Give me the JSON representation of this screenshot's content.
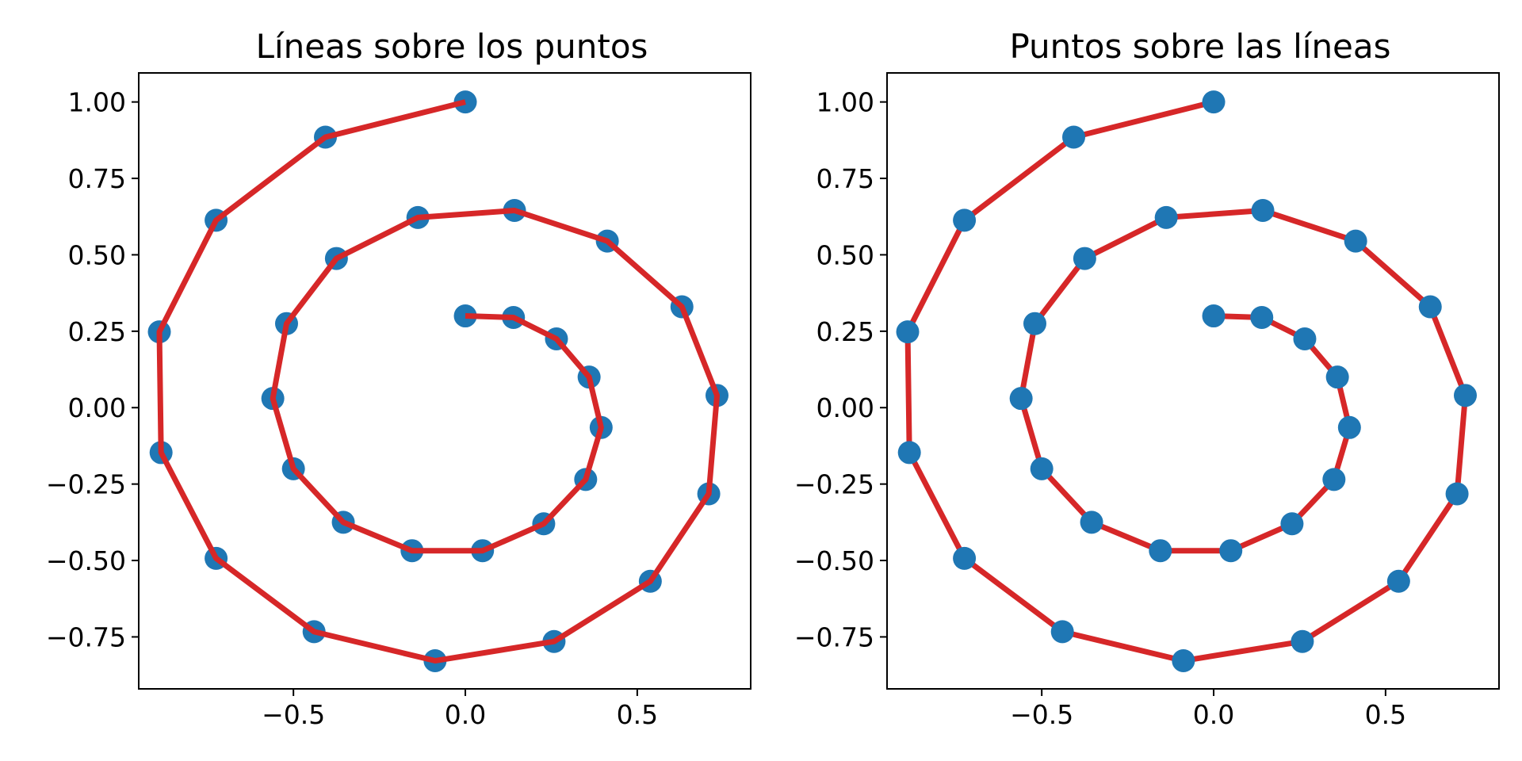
{
  "chart_data": [
    {
      "type": "line",
      "title": "Líneas sobre los puntos",
      "xlabel": "",
      "ylabel": "",
      "xlim": [
        -0.95,
        0.83
      ],
      "ylim": [
        -0.92,
        1.095
      ],
      "xticks": [
        -0.5,
        0.0,
        0.5
      ],
      "xtick_labels": [
        "−0.5",
        "0.0",
        "0.5"
      ],
      "yticks": [
        -0.75,
        -0.5,
        -0.25,
        0.0,
        0.25,
        0.5,
        0.75,
        1.0
      ],
      "ytick_labels": [
        "−0.75",
        "−0.50",
        "−0.25",
        "0.00",
        "0.25",
        "0.50",
        "0.75",
        "1.00"
      ],
      "grid": false,
      "draw_order": "points-below-line",
      "series": [
        {
          "marker_color": "#1f77b4",
          "line_color": "#d62728",
          "x": [
            0.0,
            0.14,
            0.265,
            0.36,
            0.395,
            0.35,
            0.228,
            0.05,
            -0.155,
            -0.355,
            -0.5,
            -0.56,
            -0.52,
            -0.375,
            -0.138,
            0.143,
            0.413,
            0.63,
            0.732,
            0.708,
            0.538,
            0.258,
            -0.088,
            -0.44,
            -0.725,
            -0.885,
            -0.89,
            -0.725,
            -0.407,
            0.0
          ],
          "y": [
            0.3,
            0.295,
            0.225,
            0.1,
            -0.065,
            -0.235,
            -0.38,
            -0.468,
            -0.468,
            -0.375,
            -0.2,
            0.03,
            0.275,
            0.488,
            0.622,
            0.645,
            0.545,
            0.33,
            0.04,
            -0.282,
            -0.568,
            -0.765,
            -0.828,
            -0.733,
            -0.493,
            -0.147,
            0.248,
            0.613,
            0.885,
            1.0
          ]
        }
      ]
    },
    {
      "type": "line",
      "title": "Puntos sobre las líneas",
      "xlabel": "",
      "ylabel": "",
      "xlim": [
        -0.95,
        0.83
      ],
      "ylim": [
        -0.92,
        1.095
      ],
      "xticks": [
        -0.5,
        0.0,
        0.5
      ],
      "xtick_labels": [
        "−0.5",
        "0.0",
        "0.5"
      ],
      "yticks": [
        -0.75,
        -0.5,
        -0.25,
        0.0,
        0.25,
        0.5,
        0.75,
        1.0
      ],
      "ytick_labels": [
        "−0.75",
        "−0.50",
        "−0.25",
        "0.00",
        "0.25",
        "0.50",
        "0.75",
        "1.00"
      ],
      "grid": false,
      "draw_order": "points-above-line",
      "series": [
        {
          "marker_color": "#1f77b4",
          "line_color": "#d62728",
          "x": [
            0.0,
            0.14,
            0.265,
            0.36,
            0.395,
            0.35,
            0.228,
            0.05,
            -0.155,
            -0.355,
            -0.5,
            -0.56,
            -0.52,
            -0.375,
            -0.138,
            0.143,
            0.413,
            0.63,
            0.732,
            0.708,
            0.538,
            0.258,
            -0.088,
            -0.44,
            -0.725,
            -0.885,
            -0.89,
            -0.725,
            -0.407,
            0.0
          ],
          "y": [
            0.3,
            0.295,
            0.225,
            0.1,
            -0.065,
            -0.235,
            -0.38,
            -0.468,
            -0.468,
            -0.375,
            -0.2,
            0.03,
            0.275,
            0.488,
            0.622,
            0.645,
            0.545,
            0.33,
            0.04,
            -0.282,
            -0.568,
            -0.765,
            -0.828,
            -0.733,
            -0.493,
            -0.147,
            0.248,
            0.613,
            0.885,
            1.0
          ]
        }
      ]
    }
  ]
}
